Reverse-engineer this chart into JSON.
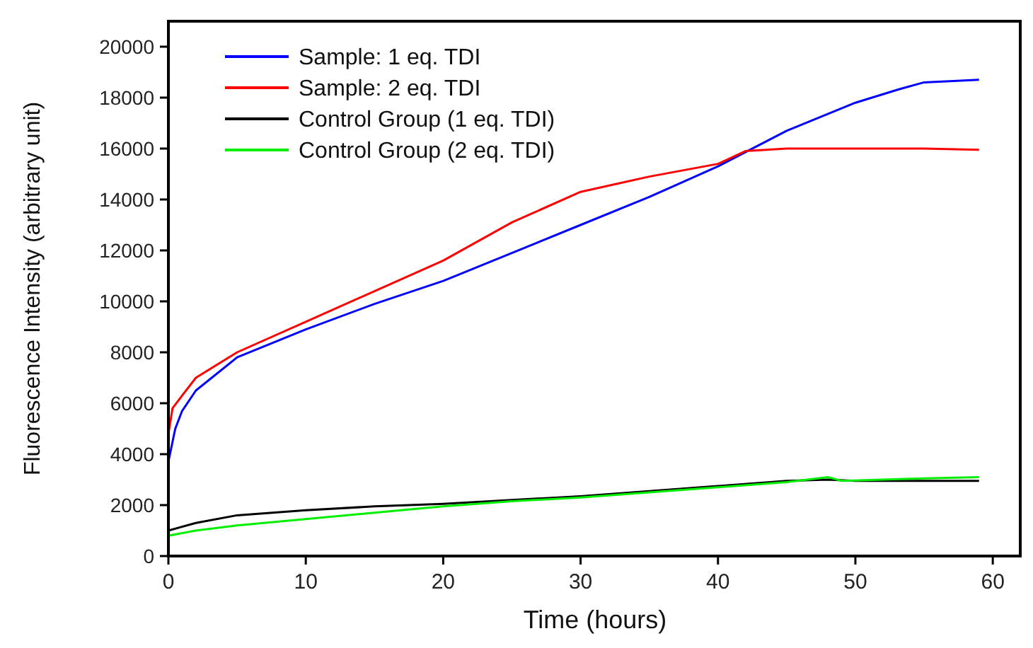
{
  "chart_data": {
    "type": "line",
    "xlabel": "Time (hours)",
    "ylabel": "Fluorescence Intensity (arbitrary unit)",
    "xlim": [
      0,
      62
    ],
    "ylim": [
      0,
      21000
    ],
    "xticks": [
      0,
      10,
      20,
      30,
      40,
      50,
      60
    ],
    "yticks": [
      0,
      2000,
      4000,
      6000,
      8000,
      10000,
      12000,
      14000,
      16000,
      18000,
      20000
    ],
    "grid": false,
    "legend": "top left",
    "marker": "none",
    "line_style": "solid",
    "series": [
      {
        "name": "Sample: 1 eq. TDI",
        "color": "#0000ff",
        "x": [
          0,
          0.5,
          1,
          2,
          5,
          10,
          15,
          20,
          25,
          30,
          35,
          40,
          45,
          50,
          53,
          55,
          59
        ],
        "values": [
          3700,
          5000,
          5700,
          6500,
          7800,
          8900,
          9900,
          10800,
          11900,
          13000,
          14100,
          15300,
          16700,
          17800,
          18300,
          18600,
          18700
        ]
      },
      {
        "name": "Sample: 2 eq. TDI",
        "color": "#ff0000",
        "x": [
          0,
          0.3,
          1,
          2,
          5,
          10,
          15,
          20,
          25,
          30,
          35,
          40,
          42,
          45,
          50,
          55,
          59
        ],
        "values": [
          4800,
          5800,
          6300,
          7000,
          8000,
          9200,
          10400,
          11600,
          13100,
          14300,
          14900,
          15400,
          15900,
          16000,
          16000,
          16000,
          15950
        ]
      },
      {
        "name": "Control Group (1 eq. TDI)",
        "color": "#000000",
        "x": [
          0,
          2,
          5,
          10,
          15,
          20,
          25,
          30,
          35,
          40,
          45,
          48,
          50,
          55,
          59
        ],
        "values": [
          1000,
          1300,
          1600,
          1800,
          1950,
          2050,
          2200,
          2350,
          2550,
          2750,
          2950,
          3000,
          2950,
          2950,
          2950
        ]
      },
      {
        "name": "Control Group (2 eq. TDI)",
        "color": "#00ee00",
        "x": [
          0,
          2,
          5,
          10,
          15,
          20,
          25,
          30,
          35,
          40,
          45,
          48,
          49,
          55,
          59
        ],
        "values": [
          800,
          1000,
          1200,
          1450,
          1700,
          1950,
          2150,
          2300,
          2500,
          2700,
          2900,
          3100,
          2950,
          3050,
          3100
        ]
      }
    ]
  }
}
